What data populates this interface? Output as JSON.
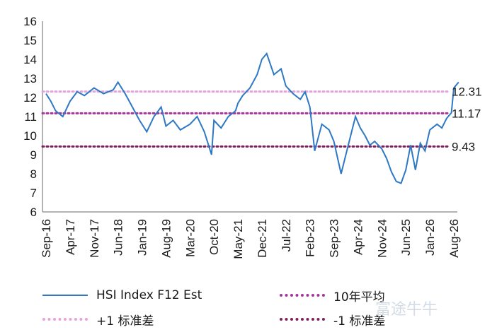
{
  "chart_data": {
    "type": "line",
    "ylim": [
      6,
      16
    ],
    "yticks": [
      6,
      7,
      8,
      9,
      10,
      11,
      12,
      13,
      14,
      15,
      16
    ],
    "xticks": [
      "Sep-16",
      "Apr-17",
      "Nov-17",
      "Jun-18",
      "Jan-19",
      "Aug-19",
      "Mar-20",
      "Oct-20",
      "May-21",
      "Dec-21",
      "Jul-22",
      "Feb-23",
      "Sep-23",
      "Apr-24",
      "Nov-24",
      "Jun-25",
      "Jan-26",
      "Aug-26"
    ],
    "series": [
      {
        "name": "HSI Index F12 Est",
        "color": "#2f78c4",
        "style": "solid",
        "x": [
          0.0,
          0.2,
          0.4,
          0.7,
          1.0,
          1.3,
          1.6,
          2.0,
          2.4,
          2.8,
          3.0,
          3.3,
          3.6,
          3.9,
          4.2,
          4.5,
          4.8,
          5.0,
          5.3,
          5.6,
          6.0,
          6.3,
          6.6,
          6.9,
          7.0,
          7.3,
          7.6,
          7.9,
          8.0,
          8.2,
          8.5,
          8.8,
          9.0,
          9.2,
          9.5,
          9.8,
          10.0,
          10.3,
          10.6,
          10.8,
          11.0,
          11.2,
          11.5,
          11.8,
          12.0,
          12.3,
          12.6,
          12.9,
          13.1,
          13.3,
          13.5,
          13.7,
          14.0,
          14.2,
          14.4,
          14.6,
          14.8,
          15.0,
          15.2,
          15.4,
          15.6,
          15.8,
          16.0,
          16.3,
          16.5,
          16.7,
          16.9,
          17.0,
          17.2
        ],
        "y": [
          12.2,
          11.8,
          11.3,
          11.0,
          11.8,
          12.3,
          12.1,
          12.5,
          12.2,
          12.4,
          12.8,
          12.2,
          11.5,
          10.8,
          10.2,
          11.0,
          11.5,
          10.5,
          10.8,
          10.3,
          10.6,
          11.0,
          10.2,
          9.0,
          10.8,
          10.4,
          11.0,
          11.3,
          11.7,
          12.1,
          12.5,
          13.2,
          14.0,
          14.3,
          13.2,
          13.5,
          12.6,
          12.2,
          11.9,
          12.3,
          11.5,
          9.2,
          10.6,
          10.3,
          9.7,
          8.0,
          9.5,
          11.0,
          10.4,
          10.0,
          9.5,
          9.7,
          9.3,
          8.8,
          8.1,
          7.6,
          7.5,
          8.2,
          9.5,
          8.2,
          9.6,
          9.2,
          10.3,
          10.6,
          10.4,
          10.9,
          11.2,
          12.5,
          12.8
        ]
      },
      {
        "name": "10年平均",
        "value": 11.17,
        "color": "#a8339b",
        "style": "dotted"
      },
      {
        "name": "+1 标准差",
        "value": 12.31,
        "color": "#e3a4dc",
        "style": "dotted"
      },
      {
        "name": "-1 标准差",
        "value": 9.43,
        "color": "#7c1f5f",
        "style": "dotted"
      }
    ],
    "ref_labels": [
      "12.31",
      "11.17",
      "9.43"
    ],
    "legend_position": "bottom",
    "grid": false
  },
  "watermark": "富途牛牛"
}
